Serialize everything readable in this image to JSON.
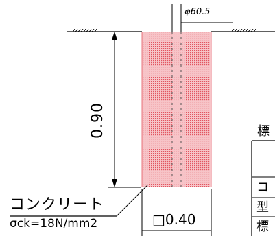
{
  "diagram": {
    "pipe_diameter_label": "φ60.5",
    "height_label": "0.90",
    "width_label": "□0.40",
    "material": {
      "name": "コンクリート",
      "strength": "σck=18N/mm2"
    },
    "table": {
      "title": "標",
      "row_chars": [
        "コ",
        "型",
        "標"
      ]
    },
    "colors": {
      "concrete_fill": "#f6b8bd",
      "concrete_dots": "#e25560",
      "line": "#000000"
    }
  }
}
